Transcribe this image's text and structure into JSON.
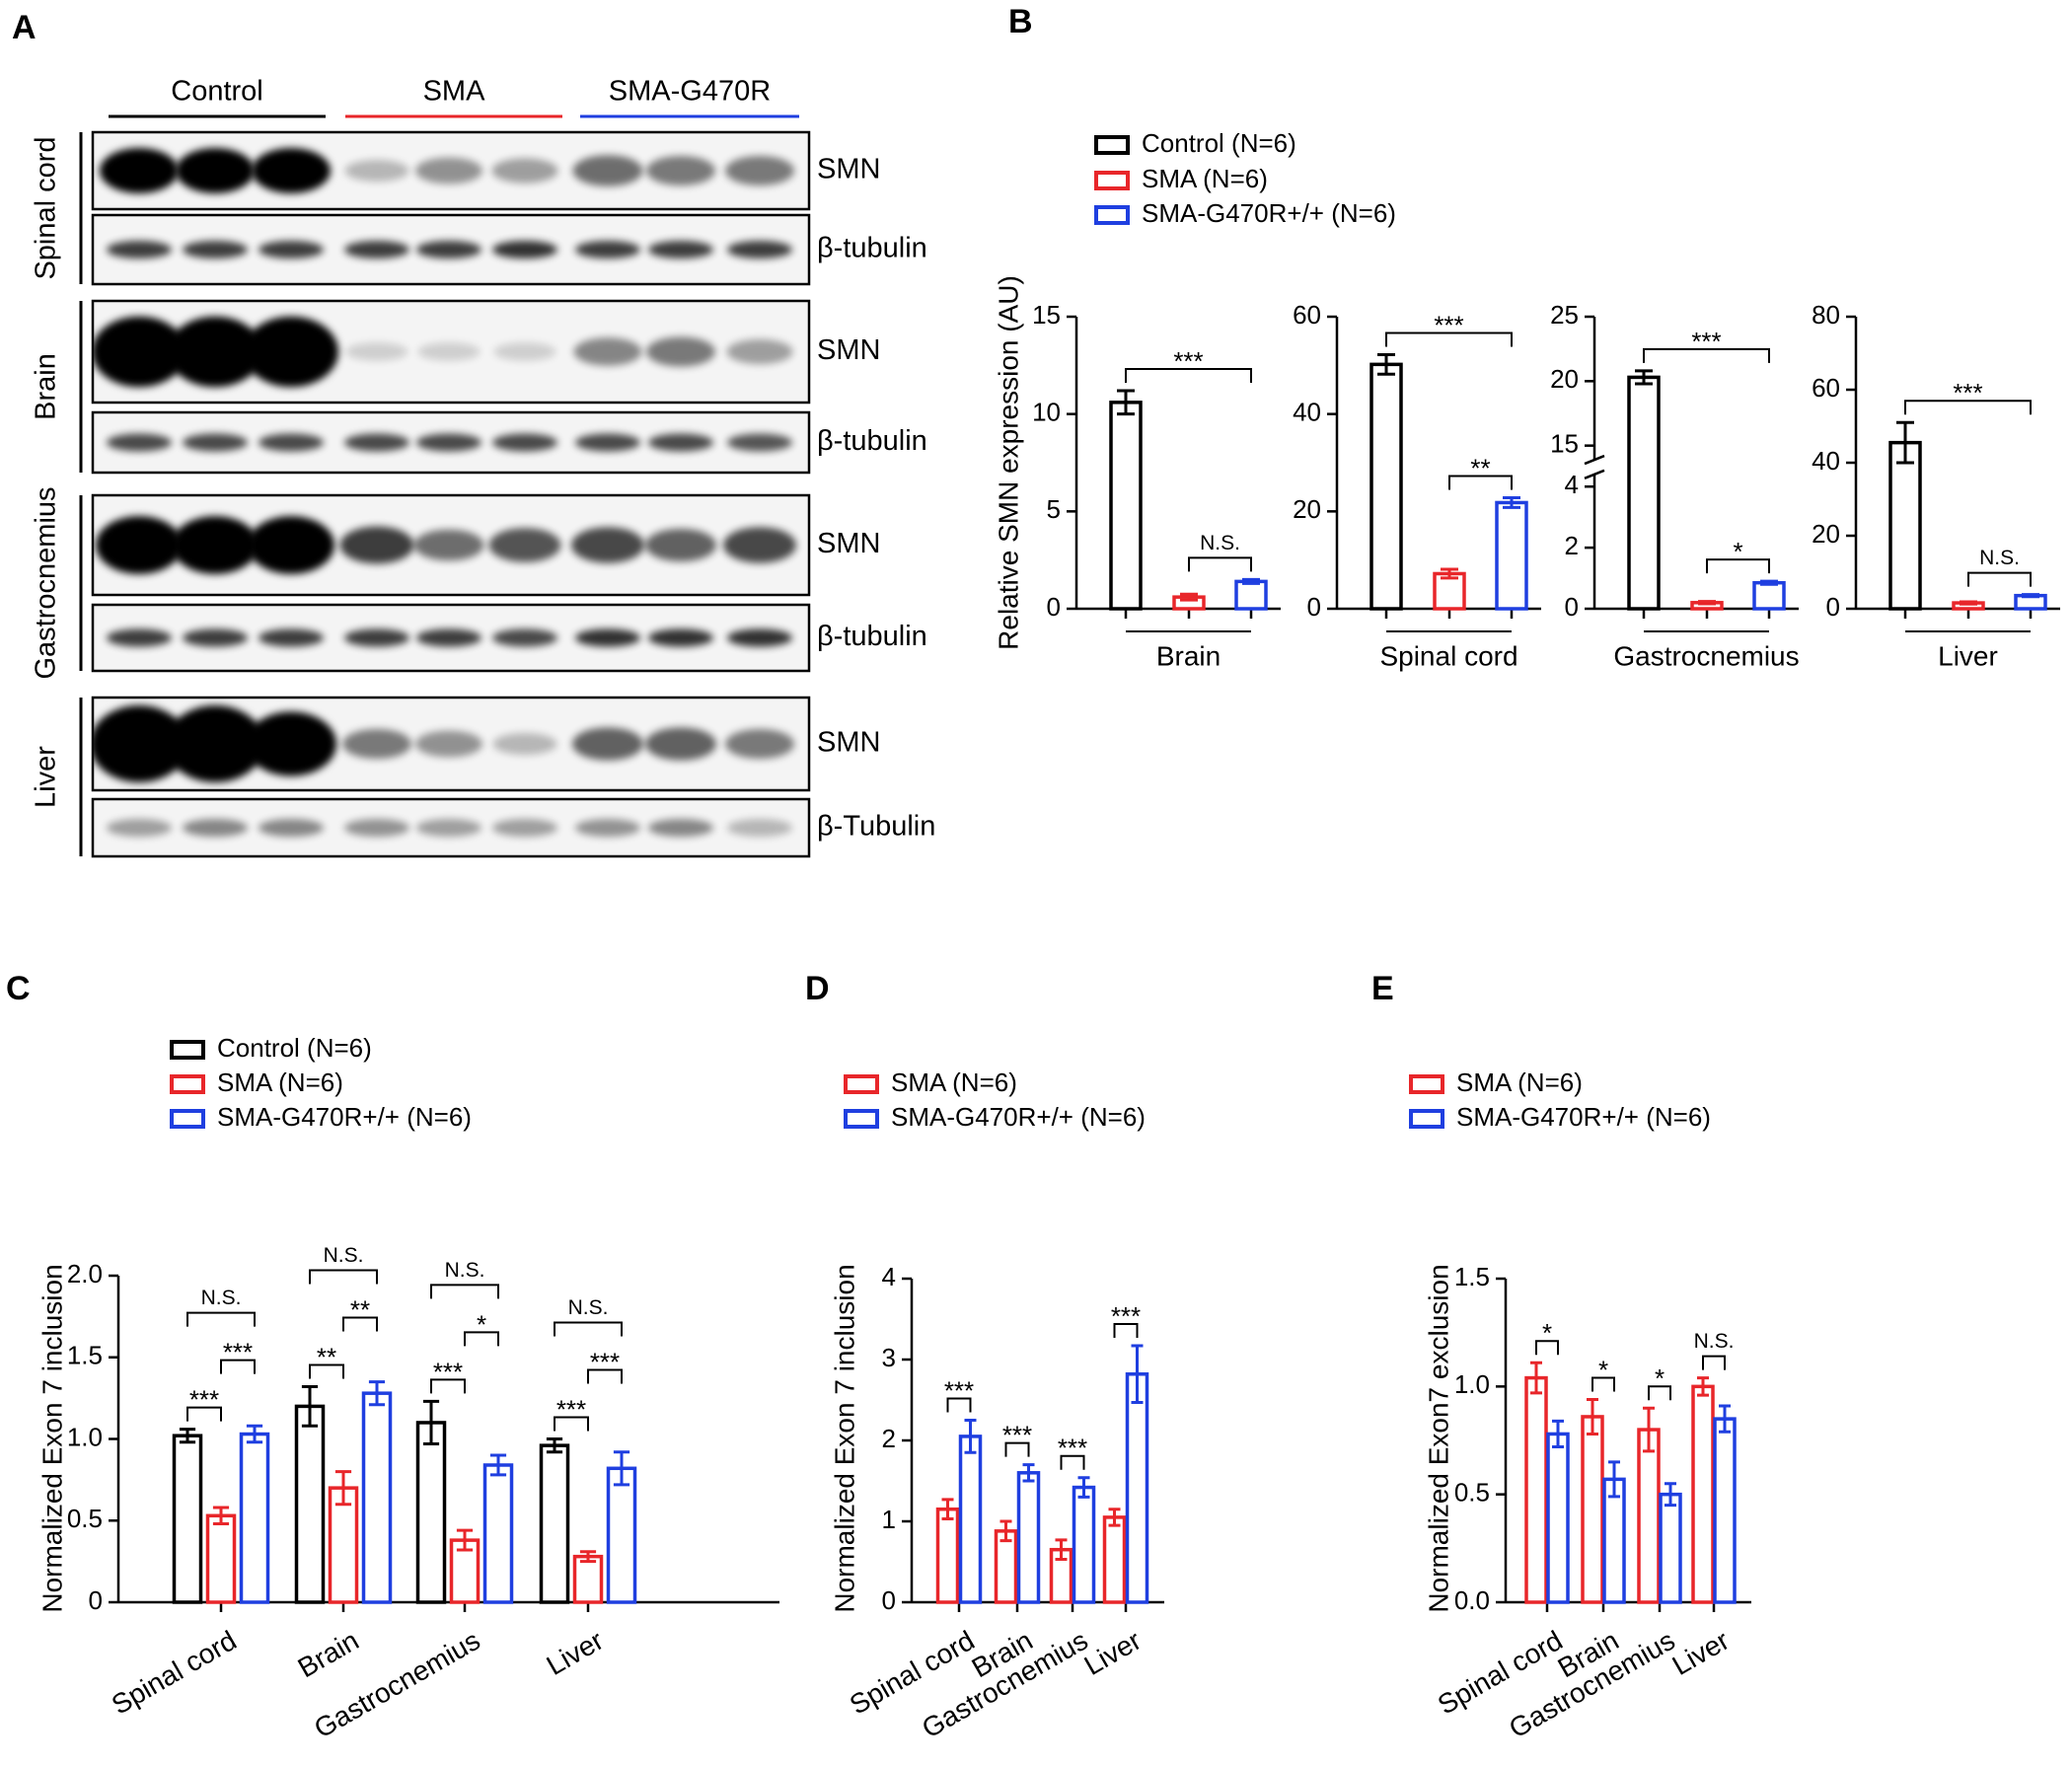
{
  "blot": {
    "label": "A",
    "groups": [
      {
        "name": "Control",
        "color": "#000000"
      },
      {
        "name": "SMA",
        "color": "#e8262a"
      },
      {
        "name": "SMA-G470R",
        "color": "#1f3fe0"
      }
    ],
    "tissues": [
      {
        "name": "Spinal cord",
        "bands": [
          "SMN",
          "β-tubulin"
        ]
      },
      {
        "name": "Brain",
        "bands": [
          "SMN",
          "β-tubulin"
        ]
      },
      {
        "name": "Gastrocnemius",
        "bands": [
          "SMN",
          "β-tubulin"
        ]
      },
      {
        "name": "Liver",
        "bands": [
          "SMN",
          "β-Tubulin"
        ]
      }
    ]
  },
  "chart_data": [
    {
      "type": "bar",
      "label": "B",
      "ylabel": "Relative SMN expression (AU)",
      "categories": [
        "Brain",
        "Spinal cord",
        "Gastrocnemius",
        "Liver"
      ],
      "series": [
        {
          "name": "Control (N=6)",
          "color": "#000000",
          "values": [
            10.6,
            50.2,
            20.3,
            45.5
          ],
          "errors": [
            0.6,
            2.0,
            0.5,
            5.5
          ]
        },
        {
          "name": "SMA (N=6)",
          "color": "#e8262a",
          "values": [
            0.6,
            7.2,
            0.2,
            1.6
          ],
          "errors": [
            0.15,
            0.9,
            0.04,
            0.3
          ]
        },
        {
          "name": "SMA-G470R+/+ (N=6)",
          "color": "#1f3fe0",
          "values": [
            1.4,
            21.8,
            0.85,
            3.6
          ],
          "errors": [
            0.1,
            1.0,
            0.05,
            0.3
          ]
        }
      ],
      "facets": [
        {
          "ylim": [
            0,
            15
          ],
          "yticks": [
            0,
            5,
            10,
            15
          ]
        },
        {
          "ylim": [
            0,
            60
          ],
          "yticks": [
            0,
            20,
            40,
            60
          ]
        },
        {
          "segments": [
            {
              "ylim": [
                0,
                4.4
              ],
              "yticks": [
                0,
                2,
                4
              ]
            },
            {
              "ylim": [
                13.9,
                25
              ],
              "yticks": [
                15,
                20,
                25
              ]
            }
          ]
        },
        {
          "ylim": [
            0,
            80
          ],
          "yticks": [
            0,
            20,
            40,
            60,
            80
          ]
        }
      ],
      "annotations": [
        {
          "text": "N.S.",
          "category": 0,
          "from": 1,
          "to": 2
        },
        {
          "text": "***",
          "category": 0,
          "from": 0,
          "to": 2
        },
        {
          "text": "**",
          "category": 1,
          "from": 1,
          "to": 2
        },
        {
          "text": "***",
          "category": 1,
          "from": 0,
          "to": 2
        },
        {
          "text": "*",
          "category": 2,
          "from": 1,
          "to": 2
        },
        {
          "text": "***",
          "category": 2,
          "from": 0,
          "to": 2
        },
        {
          "text": "N.S.",
          "category": 3,
          "from": 1,
          "to": 2
        },
        {
          "text": "***",
          "category": 3,
          "from": 0,
          "to": 2
        }
      ]
    },
    {
      "type": "bar",
      "label": "C",
      "ylabel": "Normalized Exon 7 inclusion",
      "categories": [
        "Spinal cord",
        "Brain",
        "Gastrocnemius",
        "Liver"
      ],
      "series": [
        {
          "name": "Control (N=6)",
          "color": "#000000",
          "values": [
            1.02,
            1.2,
            1.1,
            0.96
          ],
          "errors": [
            0.04,
            0.12,
            0.13,
            0.04
          ]
        },
        {
          "name": "SMA (N=6)",
          "color": "#e8262a",
          "values": [
            0.53,
            0.7,
            0.38,
            0.28
          ],
          "errors": [
            0.05,
            0.1,
            0.06,
            0.03
          ]
        },
        {
          "name": "SMA-G470R+/+ (N=6)",
          "color": "#1f3fe0",
          "values": [
            1.03,
            1.28,
            0.84,
            0.82
          ],
          "errors": [
            0.05,
            0.07,
            0.06,
            0.1
          ]
        }
      ],
      "ylim": [
        0,
        2
      ],
      "yticks": [
        0,
        0.5,
        {
          "value": 1,
          "label": "1.0"
        },
        1.5,
        {
          "value": 2,
          "label": "2.0"
        }
      ],
      "annotations": [
        {
          "text": "***",
          "category": 0,
          "from": 0,
          "to": 1
        },
        {
          "text": "***",
          "category": 0,
          "from": 1,
          "to": 2
        },
        {
          "text": "N.S.",
          "category": 0,
          "from": 0,
          "to": 2
        },
        {
          "text": "**",
          "category": 1,
          "from": 0,
          "to": 1
        },
        {
          "text": "**",
          "category": 1,
          "from": 1,
          "to": 2
        },
        {
          "text": "N.S.",
          "category": 1,
          "from": 0,
          "to": 2
        },
        {
          "text": "***",
          "category": 2,
          "from": 0,
          "to": 1
        },
        {
          "text": "*",
          "category": 2,
          "from": 1,
          "to": 2
        },
        {
          "text": "N.S.",
          "category": 2,
          "from": 0,
          "to": 2
        },
        {
          "text": "***",
          "category": 3,
          "from": 0,
          "to": 1
        },
        {
          "text": "***",
          "category": 3,
          "from": 1,
          "to": 2
        },
        {
          "text": "N.S.",
          "category": 3,
          "from": 0,
          "to": 2
        }
      ]
    },
    {
      "type": "bar",
      "label": "D",
      "ylabel": "Normalized Exon 7 inclusion",
      "categories": [
        "Spinal cord",
        "Brain",
        "Gastrocnemius",
        "Liver"
      ],
      "series": [
        {
          "name": "SMA (N=6)",
          "color": "#e8262a",
          "values": [
            1.15,
            0.88,
            0.65,
            1.05
          ],
          "errors": [
            0.12,
            0.12,
            0.12,
            0.1
          ]
        },
        {
          "name": "SMA-G470R+/+ (N=6)",
          "color": "#1f3fe0",
          "values": [
            2.05,
            1.6,
            1.42,
            2.82
          ],
          "errors": [
            0.2,
            0.1,
            0.12,
            0.35
          ]
        }
      ],
      "ylim": [
        0,
        4
      ],
      "yticks": [
        0,
        1,
        2,
        3,
        4
      ],
      "annotations": [
        {
          "text": "***",
          "category": 0,
          "from": 0,
          "to": 1
        },
        {
          "text": "***",
          "category": 1,
          "from": 0,
          "to": 1
        },
        {
          "text": "***",
          "category": 2,
          "from": 0,
          "to": 1
        },
        {
          "text": "***",
          "category": 3,
          "from": 0,
          "to": 1
        }
      ]
    },
    {
      "type": "bar",
      "label": "E",
      "ylabel": "Normalized Exon7 exclusion",
      "categories": [
        "Spinal cord",
        "Brain",
        "Gastrocnemius",
        "Liver"
      ],
      "series": [
        {
          "name": "SMA (N=6)",
          "color": "#e8262a",
          "values": [
            1.04,
            0.86,
            0.8,
            1.0
          ],
          "errors": [
            0.07,
            0.08,
            0.1,
            0.04
          ]
        },
        {
          "name": "SMA-G470R+/+ (N=6)",
          "color": "#1f3fe0",
          "values": [
            0.78,
            0.57,
            0.5,
            0.85
          ],
          "errors": [
            0.06,
            0.08,
            0.05,
            0.06
          ]
        }
      ],
      "ylim": [
        0,
        1.5
      ],
      "yticks": [
        {
          "value": 0,
          "label": "0.0"
        },
        0.5,
        {
          "value": 1,
          "label": "1.0"
        },
        1.5
      ],
      "annotations": [
        {
          "text": "*",
          "category": 0,
          "from": 0,
          "to": 1
        },
        {
          "text": "*",
          "category": 1,
          "from": 0,
          "to": 1
        },
        {
          "text": "*",
          "category": 2,
          "from": 0,
          "to": 1
        },
        {
          "text": "N.S.",
          "category": 3,
          "from": 0,
          "to": 1
        }
      ]
    }
  ]
}
